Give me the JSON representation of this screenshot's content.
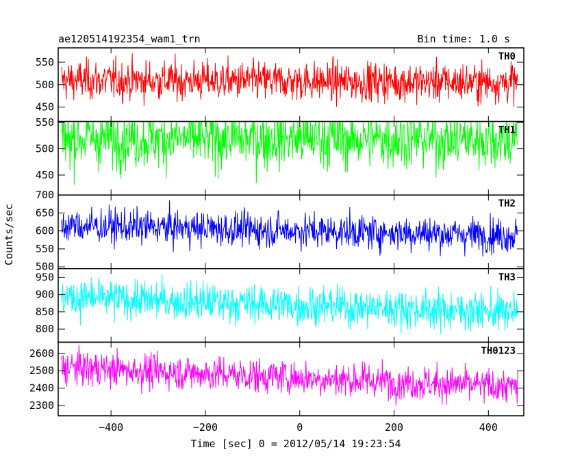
{
  "chart_data": {
    "type": "line",
    "title": "ae120514192354_wam1_trn",
    "subtitle": "Bin time: 1.0 s",
    "xlabel": "Time [sec] 0 = 2012/05/14 19:23:54",
    "ylabel": "Counts/sec",
    "xlim": [
      -512,
      475
    ],
    "x_range": [
      -505,
      462
    ],
    "x_ticks": [
      -400,
      -200,
      0,
      200,
      400
    ],
    "x_tick_labels": [
      "−400",
      "−200",
      "0",
      "200",
      "400"
    ],
    "grid": false,
    "panels": [
      {
        "name": "TH0",
        "color": "#ff0000",
        "ylim": [
          418,
          582
        ],
        "yticks": [
          450,
          500,
          550
        ],
        "ytick_labels": [
          "450",
          "500",
          "550"
        ],
        "level_start": 510,
        "level_end": 505,
        "noise": 22
      },
      {
        "name": "TH1",
        "color": "#00ff00",
        "ylim": [
          412,
          552
        ],
        "yticks": [
          450,
          500,
          550
        ],
        "ytick_labels": [
          "450",
          "500",
          "550"
        ],
        "level_start": 520,
        "level_end": 518,
        "noise": 28
      },
      {
        "name": "TH2",
        "color": "#0000ff",
        "ylim": [
          495,
          700
        ],
        "yticks": [
          500,
          550,
          600,
          650,
          700
        ],
        "ytick_labels": [
          "500",
          "550",
          "600",
          "650",
          "700"
        ],
        "level_start": 615,
        "level_end": 588,
        "noise": 24
      },
      {
        "name": "TH3",
        "color": "#00ffff",
        "ylim": [
          762,
          975
        ],
        "yticks": [
          800,
          850,
          900,
          950
        ],
        "ytick_labels": [
          "800",
          "850",
          "900",
          "950"
        ],
        "level_start": 892,
        "level_end": 848,
        "noise": 28
      },
      {
        "name": "TH0123",
        "color": "#ff00ff",
        "ylim": [
          2240,
          2665
        ],
        "yticks": [
          2300,
          2400,
          2500,
          2600
        ],
        "ytick_labels": [
          "2300",
          "2400",
          "2500",
          "2600"
        ],
        "level_start": 2520,
        "level_end": 2405,
        "noise": 50
      }
    ]
  }
}
